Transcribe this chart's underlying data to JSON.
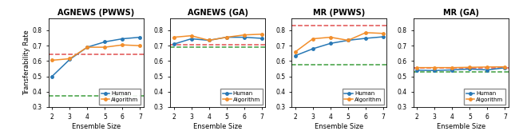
{
  "subplots": [
    {
      "title": "AGNEWS (PWWS)",
      "human": [
        0.5,
        0.61,
        0.69,
        0.725,
        0.745,
        0.755
      ],
      "algorithm": [
        0.605,
        0.615,
        0.69,
        0.69,
        0.705,
        0.7
      ],
      "red_hline": 0.645,
      "green_hline": 0.375,
      "ylim": [
        0.3,
        0.88
      ],
      "yticks": [
        0.3,
        0.4,
        0.5,
        0.6,
        0.7,
        0.8
      ],
      "show_ylabel": true
    },
    {
      "title": "AGNEWS (GA)",
      "human": [
        0.71,
        0.745,
        0.735,
        0.755,
        0.755,
        0.748
      ],
      "algorithm": [
        0.755,
        0.765,
        0.735,
        0.755,
        0.77,
        0.775
      ],
      "red_hline": 0.705,
      "green_hline": 0.693,
      "ylim": [
        0.3,
        0.88
      ],
      "yticks": [
        0.3,
        0.4,
        0.5,
        0.6,
        0.7,
        0.8
      ],
      "show_ylabel": false
    },
    {
      "title": "MR (PWWS)",
      "human": [
        0.635,
        0.68,
        0.715,
        0.735,
        0.748,
        0.758
      ],
      "algorithm": [
        0.66,
        0.745,
        0.755,
        0.735,
        0.785,
        0.78
      ],
      "red_hline": 0.83,
      "green_hline": 0.578,
      "ylim": [
        0.3,
        0.88
      ],
      "yticks": [
        0.3,
        0.4,
        0.5,
        0.6,
        0.7,
        0.8
      ],
      "show_ylabel": false
    },
    {
      "title": "MR (GA)",
      "human": [
        0.54,
        0.538,
        0.542,
        0.548,
        0.542,
        0.556
      ],
      "algorithm": [
        0.557,
        0.557,
        0.557,
        0.559,
        0.561,
        0.562
      ],
      "red_hline": 0.557,
      "green_hline": 0.527,
      "ylim": [
        0.3,
        0.88
      ],
      "yticks": [
        0.3,
        0.4,
        0.5,
        0.6,
        0.7,
        0.8
      ],
      "show_ylabel": false
    }
  ],
  "x": [
    2,
    3,
    4,
    5,
    6,
    7
  ],
  "human_color": "#2878b5",
  "algorithm_color": "#f28e2b",
  "red_hline_color": "#e05050",
  "green_hline_color": "#3d9e3d",
  "xlabel": "Ensemble Size",
  "ylabel": "Transferability Rate",
  "bg_color": "#ffffff",
  "fig_bg_color": "#ffffff"
}
